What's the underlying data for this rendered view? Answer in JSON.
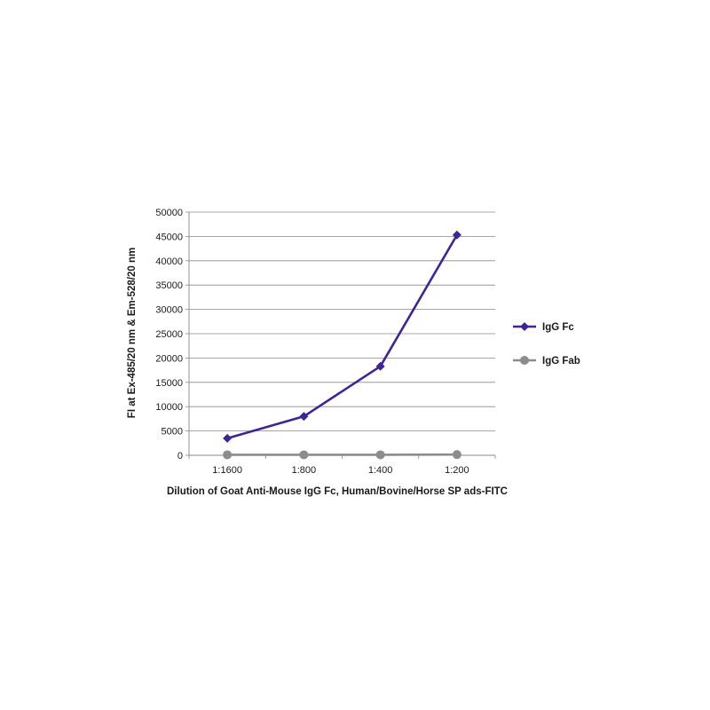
{
  "chart_data": {
    "type": "line",
    "title": "",
    "xlabel": "Dilution of Goat Anti-Mouse IgG Fc, Human/Bovine/Horse SP ads-FITC",
    "ylabel": "FI at Ex-485/20 nm & Em-528/20 nm",
    "categories": [
      "1:1600",
      "1:800",
      "1:400",
      "1:200"
    ],
    "ylim": [
      0,
      50000
    ],
    "yticks": [
      0,
      5000,
      10000,
      15000,
      20000,
      25000,
      30000,
      35000,
      40000,
      45000,
      50000
    ],
    "grid": true,
    "legend_position": "right",
    "series": [
      {
        "name": "IgG Fc",
        "values": [
          3500,
          8000,
          18300,
          45300
        ],
        "color": "#3d2597",
        "marker": "diamond"
      },
      {
        "name": "IgG Fab",
        "values": [
          100,
          100,
          100,
          150
        ],
        "color": "#8c8c8c",
        "marker": "circle"
      }
    ]
  }
}
